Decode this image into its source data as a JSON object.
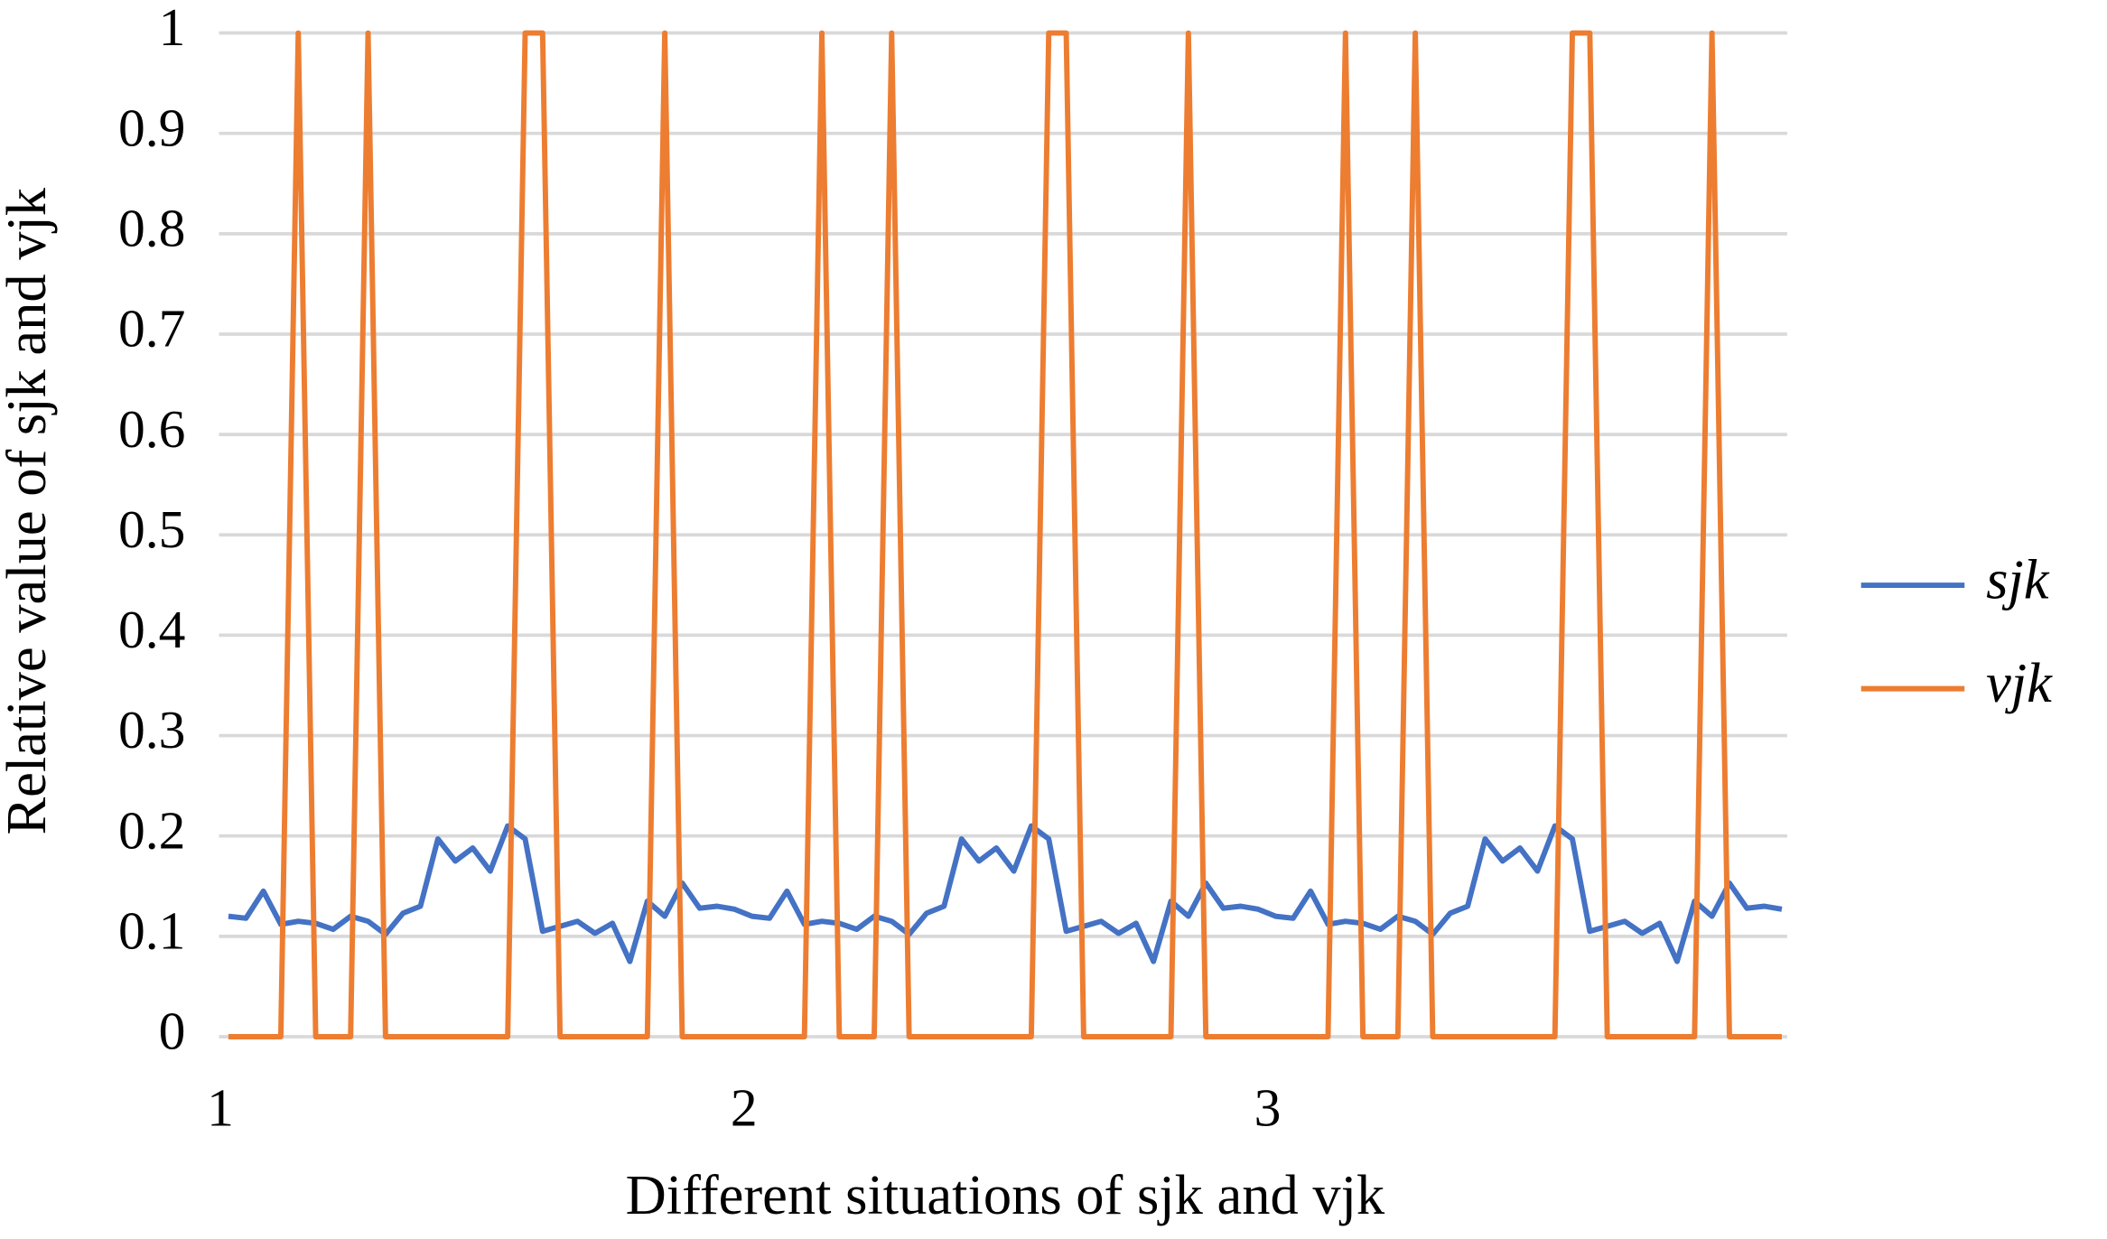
{
  "chart_data": {
    "type": "line",
    "x_label": "Different situations of sjk and vjk",
    "y_label": "Relative value of sjk and vjk",
    "categories": [
      "1",
      null,
      null,
      null,
      null,
      null,
      null,
      null,
      null,
      null,
      null,
      null,
      null,
      null,
      null,
      null,
      null,
      null,
      null,
      null,
      null,
      null,
      null,
      null,
      null,
      null,
      null,
      null,
      null,
      null,
      "2",
      null,
      null,
      null,
      null,
      null,
      null,
      null,
      null,
      null,
      null,
      null,
      null,
      null,
      null,
      null,
      null,
      null,
      null,
      null,
      null,
      null,
      null,
      null,
      null,
      null,
      null,
      null,
      null,
      null,
      "3",
      null,
      null,
      null,
      null,
      null,
      null,
      null,
      null,
      null,
      null,
      null,
      null,
      null,
      null,
      null,
      null,
      null,
      null,
      null,
      null,
      null,
      null,
      null,
      null,
      null,
      null,
      null,
      null,
      null
    ],
    "series": [
      {
        "name": "sjk",
        "color": "#4472c4",
        "values": [
          0.12,
          0.118,
          0.145,
          0.112,
          0.115,
          0.113,
          0.107,
          0.12,
          0.115,
          0.102,
          0.123,
          0.13,
          0.197,
          0.175,
          0.188,
          0.165,
          0.21,
          0.197,
          0.105,
          0.11,
          0.115,
          0.103,
          0.113,
          0.075,
          0.135,
          0.12,
          0.153,
          0.128,
          0.13,
          0.127,
          0.12,
          0.118,
          0.145,
          0.112,
          0.115,
          0.113,
          0.107,
          0.12,
          0.115,
          0.102,
          0.123,
          0.13,
          0.197,
          0.175,
          0.188,
          0.165,
          0.21,
          0.197,
          0.105,
          0.11,
          0.115,
          0.103,
          0.113,
          0.075,
          0.135,
          0.12,
          0.153,
          0.128,
          0.13,
          0.127,
          0.12,
          0.118,
          0.145,
          0.112,
          0.115,
          0.113,
          0.107,
          0.12,
          0.115,
          0.102,
          0.123,
          0.13,
          0.197,
          0.175,
          0.188,
          0.165,
          0.21,
          0.197,
          0.105,
          0.11,
          0.115,
          0.103,
          0.113,
          0.075,
          0.135,
          0.12,
          0.153,
          0.128,
          0.13,
          0.127
        ]
      },
      {
        "name": "vjk",
        "color": "#ed7d31",
        "values": [
          0,
          0,
          0,
          0,
          1,
          0,
          0,
          0,
          1,
          0,
          0,
          0,
          0,
          0,
          0,
          0,
          0,
          1,
          1,
          0,
          0,
          0,
          0,
          0,
          0,
          1,
          0,
          0,
          0,
          0,
          0,
          0,
          0,
          0,
          1,
          0,
          0,
          0,
          1,
          0,
          0,
          0,
          0,
          0,
          0,
          0,
          0,
          1,
          1,
          0,
          0,
          0,
          0,
          0,
          0,
          1,
          0,
          0,
          0,
          0,
          0,
          0,
          0,
          0,
          1,
          0,
          0,
          0,
          1,
          0,
          0,
          0,
          0,
          0,
          0,
          0,
          0,
          1,
          1,
          0,
          0,
          0,
          0,
          0,
          0,
          1,
          0,
          0,
          0,
          0
        ]
      }
    ],
    "ylim": [
      0,
      1
    ],
    "yticks": [
      0,
      0.1,
      0.2,
      0.3,
      0.4,
      0.5,
      0.6,
      0.7,
      0.8,
      0.9,
      1
    ],
    "grid": true,
    "legend": "right"
  }
}
